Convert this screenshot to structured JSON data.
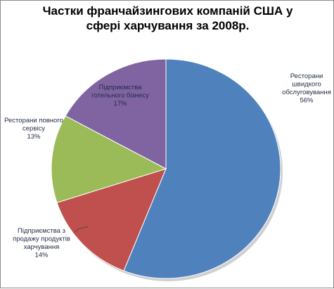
{
  "chart_data": {
    "type": "pie",
    "title_lines": [
      "Частки франчайзингових компаній США у",
      "сфері харчування за 2008р."
    ],
    "slices": [
      {
        "label_lines": [
          "Ресторани",
          "швидкого",
          "обслуговування"
        ],
        "pct_text": "56%",
        "value": 56,
        "color": "#4f81bd"
      },
      {
        "label_lines": [
          "Підприємства з",
          "продажу продуктів",
          "харчування"
        ],
        "pct_text": "14%",
        "value": 14,
        "color": "#c0504d"
      },
      {
        "label_lines": [
          "Ресторани повного",
          "сервісу"
        ],
        "pct_text": "13%",
        "value": 13,
        "color": "#9bbb59"
      },
      {
        "label_lines": [
          "Підприємства",
          "готельного бізнесу"
        ],
        "pct_text": "17%",
        "value": 17,
        "color": "#8064a2"
      }
    ],
    "start_angle_deg": 0,
    "direction": "clockwise",
    "legend": "none"
  }
}
